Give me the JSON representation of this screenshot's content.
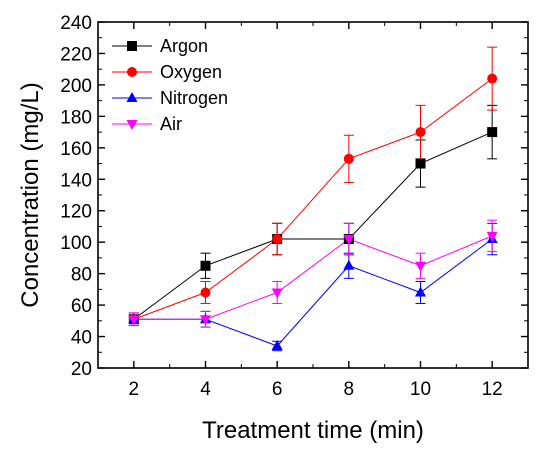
{
  "chart_data": {
    "type": "line",
    "xlabel": "Treatment time (min)",
    "ylabel": "Concentration (mg/L)",
    "xlim": [
      1,
      13
    ],
    "ylim": [
      20,
      240
    ],
    "xticks": [
      2,
      4,
      6,
      8,
      10,
      12
    ],
    "yticks": [
      20,
      40,
      60,
      80,
      100,
      120,
      140,
      160,
      180,
      200,
      220,
      240
    ],
    "grid": false,
    "legend_position": "top-left",
    "x": [
      2,
      4,
      6,
      8,
      10,
      12
    ],
    "series": [
      {
        "name": "Argon",
        "marker": "square",
        "color": "#000000",
        "values": [
          51,
          85,
          102,
          102,
          150,
          170
        ],
        "errors": [
          4,
          8,
          10,
          10,
          15,
          17
        ]
      },
      {
        "name": "Oxygen",
        "marker": "circle",
        "color": "#ff0000",
        "values": [
          51,
          68,
          102,
          153,
          170,
          204
        ],
        "errors": [
          4,
          7,
          10,
          15,
          17,
          20
        ]
      },
      {
        "name": "Nitrogen",
        "marker": "triangle-up",
        "color": "#0000ff",
        "values": [
          51,
          51,
          34,
          85,
          68,
          102
        ],
        "errors": [
          4,
          5,
          3,
          8,
          7,
          10
        ]
      },
      {
        "name": "Air",
        "marker": "triangle-down",
        "color": "#ff00ff",
        "values": [
          51,
          51,
          68,
          102,
          85,
          104
        ],
        "errors": [
          4,
          5,
          7,
          10,
          8,
          10
        ]
      }
    ]
  }
}
